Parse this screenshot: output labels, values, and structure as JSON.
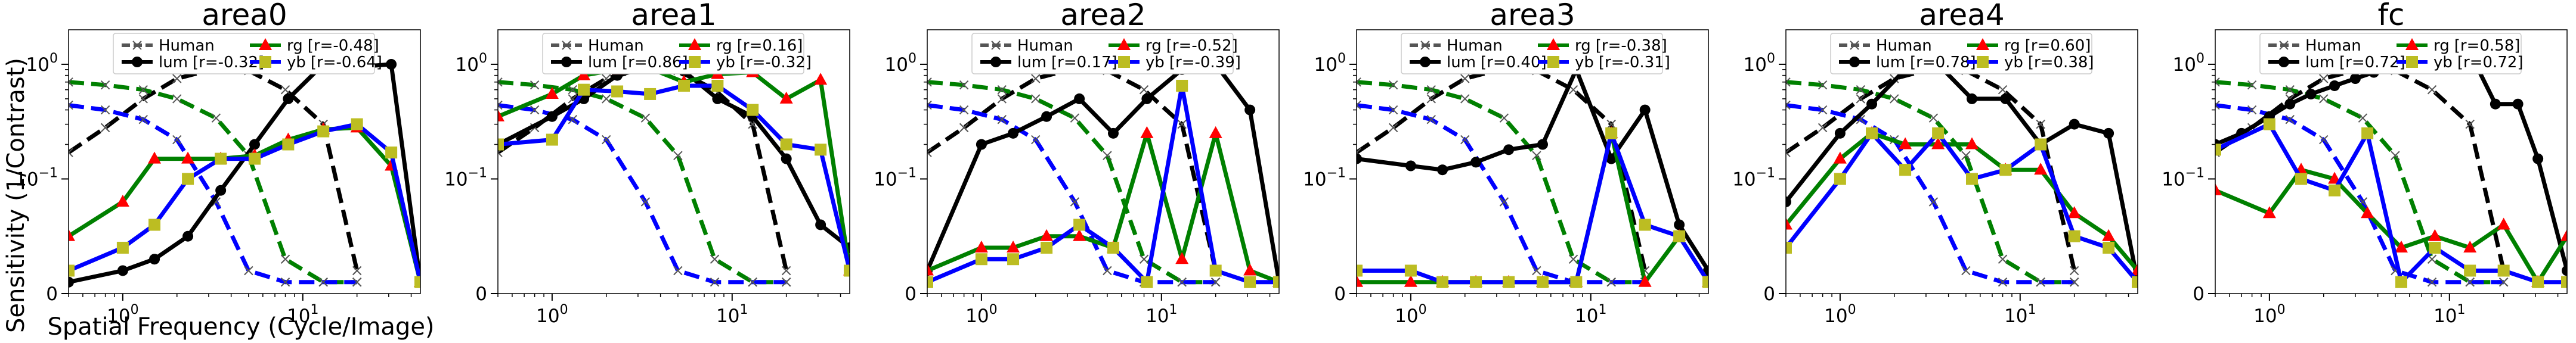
{
  "figure": {
    "ylabel": "Sensitivity (1/Contrast)",
    "xlabel": "Spatial Frequency (Cycle/Image)",
    "colors": {
      "human": "#000000",
      "lum": "#000000",
      "rg": "#008000",
      "yb": "#0000ff",
      "rg_marker": "#ff0000",
      "yb_marker": "#bcbd22"
    }
  },
  "chart_data": [
    {
      "type": "line",
      "title": "area0",
      "x_scale": "log",
      "y_scale": "symlog",
      "xlim": [
        0.5,
        45
      ],
      "ylim": [
        0,
        2
      ],
      "legend": {
        "placement": "top-center",
        "entries": [
          {
            "series": "Human",
            "label": "Human",
            "r": ""
          },
          {
            "series": "lum",
            "label": "lum",
            "r": "[r=-0.32]"
          },
          {
            "series": "rg",
            "label": "rg",
            "r": "[r=-0.48]"
          },
          {
            "series": "yb",
            "label": "yb",
            "r": "[r=-0.64]"
          }
        ]
      },
      "series": [
        {
          "name": "Human",
          "style": "dashed",
          "x": [
            0.5,
            0.8,
            1.3,
            2,
            3.3,
            5,
            8,
            13,
            20
          ],
          "lum": [
            0.17,
            0.28,
            0.5,
            0.75,
            0.92,
            0.88,
            0.6,
            0.3,
            0.02
          ],
          "rg": [
            0.7,
            0.66,
            0.6,
            0.5,
            0.34,
            0.16,
            0.03,
            0.01,
            0.01
          ],
          "yb": [
            0.44,
            0.4,
            0.33,
            0.22,
            0.08,
            0.02,
            0.01,
            0.01,
            0.01
          ]
        },
        {
          "name": "lum",
          "x": [
            0.5,
            1,
            1.5,
            2.3,
            3.5,
            5.4,
            8.3,
            13,
            20,
            31,
            45
          ],
          "y": [
            0.01,
            0.02,
            0.03,
            0.05,
            0.09,
            0.2,
            0.5,
            1.0,
            0.95,
            1.0,
            0.01
          ]
        },
        {
          "name": "rg",
          "x": [
            0.5,
            1,
            1.5,
            2.3,
            3.5,
            5.4,
            8.3,
            13,
            20,
            31,
            45
          ],
          "y": [
            0.05,
            0.08,
            0.15,
            0.15,
            0.15,
            0.16,
            0.22,
            0.27,
            0.28,
            0.13,
            0.01
          ]
        },
        {
          "name": "yb",
          "x": [
            0.5,
            1,
            1.5,
            2.3,
            3.5,
            5.4,
            8.3,
            13,
            20,
            31,
            45
          ],
          "y": [
            0.02,
            0.04,
            0.06,
            0.1,
            0.15,
            0.15,
            0.2,
            0.26,
            0.3,
            0.17,
            0.01
          ]
        }
      ]
    },
    {
      "type": "line",
      "title": "area1",
      "x_scale": "log",
      "y_scale": "symlog",
      "xlim": [
        0.5,
        45
      ],
      "ylim": [
        0,
        2
      ],
      "legend": {
        "placement": "top-center",
        "entries": [
          {
            "series": "Human",
            "label": "Human",
            "r": ""
          },
          {
            "series": "lum",
            "label": "lum",
            "r": "[r=0.86]"
          },
          {
            "series": "rg",
            "label": "rg",
            "r": "[r=0.16]"
          },
          {
            "series": "yb",
            "label": "yb",
            "r": "[r=-0.32]"
          }
        ]
      },
      "series": [
        {
          "name": "Human",
          "style": "dashed",
          "x": [
            0.5,
            0.8,
            1.3,
            2,
            3.3,
            5,
            8,
            13,
            20
          ],
          "lum": [
            0.17,
            0.28,
            0.5,
            0.75,
            0.92,
            0.88,
            0.6,
            0.3,
            0.02
          ],
          "rg": [
            0.7,
            0.66,
            0.6,
            0.5,
            0.34,
            0.16,
            0.03,
            0.01,
            0.01
          ],
          "yb": [
            0.44,
            0.4,
            0.33,
            0.22,
            0.08,
            0.02,
            0.01,
            0.01,
            0.01
          ]
        },
        {
          "name": "lum",
          "x": [
            0.5,
            1,
            1.5,
            2.3,
            3.5,
            5.4,
            8.3,
            13,
            20,
            31,
            45
          ],
          "y": [
            0.2,
            0.35,
            0.5,
            0.8,
            0.95,
            0.87,
            0.5,
            0.35,
            0.15,
            0.06,
            0.04
          ]
        },
        {
          "name": "rg",
          "x": [
            0.5,
            1,
            1.5,
            2.3,
            3.5,
            5.4,
            8.3,
            13,
            20,
            31,
            45
          ],
          "y": [
            0.35,
            0.55,
            0.8,
            0.9,
            0.92,
            0.7,
            0.82,
            0.85,
            0.5,
            0.73,
            0.02
          ]
        },
        {
          "name": "yb",
          "x": [
            0.5,
            1,
            1.5,
            2.3,
            3.5,
            5.4,
            8.3,
            13,
            20,
            31,
            45
          ],
          "y": [
            0.2,
            0.22,
            0.6,
            0.58,
            0.55,
            0.65,
            0.65,
            0.4,
            0.2,
            0.18,
            0.02
          ]
        }
      ]
    },
    {
      "type": "line",
      "title": "area2",
      "x_scale": "log",
      "y_scale": "symlog",
      "xlim": [
        0.5,
        45
      ],
      "ylim": [
        0,
        2
      ],
      "legend": {
        "placement": "top-center",
        "entries": [
          {
            "series": "Human",
            "label": "Human",
            "r": ""
          },
          {
            "series": "lum",
            "label": "lum",
            "r": "[r=0.17]"
          },
          {
            "series": "rg",
            "label": "rg",
            "r": "[r=-0.52]"
          },
          {
            "series": "yb",
            "label": "yb",
            "r": "[r=-0.39]"
          }
        ]
      },
      "series": [
        {
          "name": "Human",
          "style": "dashed",
          "x": [
            0.5,
            0.8,
            1.3,
            2,
            3.3,
            5,
            8,
            13,
            20
          ],
          "lum": [
            0.17,
            0.28,
            0.5,
            0.75,
            0.92,
            0.88,
            0.6,
            0.3,
            0.02
          ],
          "rg": [
            0.7,
            0.66,
            0.6,
            0.5,
            0.34,
            0.16,
            0.03,
            0.01,
            0.01
          ],
          "yb": [
            0.44,
            0.4,
            0.33,
            0.22,
            0.08,
            0.02,
            0.01,
            0.01,
            0.01
          ]
        },
        {
          "name": "lum",
          "x": [
            0.5,
            1,
            1.5,
            2.3,
            3.5,
            5.4,
            8.3,
            13,
            20,
            31,
            45
          ],
          "y": [
            0.02,
            0.2,
            0.25,
            0.35,
            0.5,
            0.25,
            0.5,
            0.9,
            1.0,
            0.4,
            0.01
          ]
        },
        {
          "name": "rg",
          "x": [
            0.5,
            1,
            1.5,
            2.3,
            3.5,
            5.4,
            8.3,
            13,
            20,
            31,
            45
          ],
          "y": [
            0.02,
            0.04,
            0.04,
            0.05,
            0.05,
            0.04,
            0.25,
            0.03,
            0.25,
            0.02,
            0.01
          ]
        },
        {
          "name": "yb",
          "x": [
            0.5,
            1,
            1.5,
            2.3,
            3.5,
            5.4,
            8.3,
            13,
            20,
            31,
            45
          ],
          "y": [
            0.01,
            0.03,
            0.03,
            0.04,
            0.06,
            0.04,
            0.01,
            0.65,
            0.02,
            0.01,
            0.01
          ]
        }
      ]
    },
    {
      "type": "line",
      "title": "area3",
      "x_scale": "log",
      "y_scale": "symlog",
      "xlim": [
        0.5,
        45
      ],
      "ylim": [
        0,
        2
      ],
      "legend": {
        "placement": "top-center",
        "entries": [
          {
            "series": "Human",
            "label": "Human",
            "r": ""
          },
          {
            "series": "lum",
            "label": "lum",
            "r": "[r=0.40]"
          },
          {
            "series": "rg",
            "label": "rg",
            "r": "[r=-0.38]"
          },
          {
            "series": "yb",
            "label": "yb",
            "r": "[r=-0.31]"
          }
        ]
      },
      "series": [
        {
          "name": "Human",
          "style": "dashed",
          "x": [
            0.5,
            0.8,
            1.3,
            2,
            3.3,
            5,
            8,
            13,
            20
          ],
          "lum": [
            0.17,
            0.28,
            0.5,
            0.75,
            0.92,
            0.88,
            0.6,
            0.3,
            0.02
          ],
          "rg": [
            0.7,
            0.66,
            0.6,
            0.5,
            0.34,
            0.16,
            0.03,
            0.01,
            0.01
          ],
          "yb": [
            0.44,
            0.4,
            0.33,
            0.22,
            0.08,
            0.02,
            0.01,
            0.01,
            0.01
          ]
        },
        {
          "name": "lum",
          "x": [
            0.5,
            1,
            1.5,
            2.3,
            3.5,
            5.4,
            8.3,
            13,
            20,
            31,
            45
          ],
          "y": [
            0.15,
            0.13,
            0.12,
            0.14,
            0.18,
            0.2,
            0.9,
            0.15,
            0.4,
            0.06,
            0.02
          ]
        },
        {
          "name": "rg",
          "x": [
            0.5,
            1,
            1.5,
            2.3,
            3.5,
            5.4,
            8.3,
            13,
            20,
            31,
            45
          ],
          "y": [
            0.01,
            0.01,
            0.01,
            0.01,
            0.01,
            0.01,
            0.01,
            0.25,
            0.01,
            0.05,
            0.01
          ]
        },
        {
          "name": "yb",
          "x": [
            0.5,
            1,
            1.5,
            2.3,
            3.5,
            5.4,
            8.3,
            13,
            20,
            31,
            45
          ],
          "y": [
            0.02,
            0.02,
            0.01,
            0.01,
            0.01,
            0.01,
            0.01,
            0.25,
            0.06,
            0.05,
            0.01
          ]
        }
      ]
    },
    {
      "type": "line",
      "title": "area4",
      "x_scale": "log",
      "y_scale": "symlog",
      "xlim": [
        0.5,
        45
      ],
      "ylim": [
        0,
        2
      ],
      "legend": {
        "placement": "top-center",
        "entries": [
          {
            "series": "Human",
            "label": "Human",
            "r": ""
          },
          {
            "series": "lum",
            "label": "lum",
            "r": "[r=0.78]"
          },
          {
            "series": "rg",
            "label": "rg",
            "r": "[r=0.60]"
          },
          {
            "series": "yb",
            "label": "yb",
            "r": "[r=0.38]"
          }
        ]
      },
      "series": [
        {
          "name": "Human",
          "style": "dashed",
          "x": [
            0.5,
            0.8,
            1.3,
            2,
            3.3,
            5,
            8,
            13,
            20
          ],
          "lum": [
            0.17,
            0.28,
            0.5,
            0.75,
            0.92,
            0.88,
            0.6,
            0.3,
            0.02
          ],
          "rg": [
            0.7,
            0.66,
            0.6,
            0.5,
            0.34,
            0.16,
            0.03,
            0.01,
            0.01
          ],
          "yb": [
            0.44,
            0.4,
            0.33,
            0.22,
            0.08,
            0.02,
            0.01,
            0.01,
            0.01
          ]
        },
        {
          "name": "lum",
          "x": [
            0.5,
            1,
            1.5,
            2.3,
            3.5,
            5.4,
            8.3,
            13,
            20,
            31,
            45
          ],
          "y": [
            0.08,
            0.25,
            0.45,
            0.9,
            1.0,
            0.5,
            0.5,
            0.2,
            0.3,
            0.25,
            0.01
          ]
        },
        {
          "name": "rg",
          "x": [
            0.5,
            1,
            1.5,
            2.3,
            3.5,
            5.4,
            8.3,
            13,
            20,
            31,
            45
          ],
          "y": [
            0.06,
            0.15,
            0.25,
            0.2,
            0.2,
            0.2,
            0.12,
            0.12,
            0.07,
            0.05,
            0.02
          ]
        },
        {
          "name": "yb",
          "x": [
            0.5,
            1,
            1.5,
            2.3,
            3.5,
            5.4,
            8.3,
            13,
            20,
            31,
            45
          ],
          "y": [
            0.04,
            0.1,
            0.25,
            0.12,
            0.25,
            0.1,
            0.12,
            0.2,
            0.05,
            0.04,
            0.01
          ]
        }
      ]
    },
    {
      "type": "line",
      "title": "fc",
      "x_scale": "log",
      "y_scale": "symlog",
      "xlim": [
        0.5,
        45
      ],
      "ylim": [
        0,
        2
      ],
      "legend": {
        "placement": "top-center",
        "entries": [
          {
            "series": "Human",
            "label": "Human",
            "r": ""
          },
          {
            "series": "lum",
            "label": "lum",
            "r": "[r=0.72]"
          },
          {
            "series": "rg",
            "label": "rg",
            "r": "[r=0.58]"
          },
          {
            "series": "yb",
            "label": "yb",
            "r": "[r=0.72]"
          }
        ]
      },
      "series": [
        {
          "name": "Human",
          "style": "dashed",
          "x": [
            0.5,
            0.8,
            1.3,
            2,
            3.3,
            5,
            8,
            13,
            20
          ],
          "lum": [
            0.17,
            0.28,
            0.5,
            0.75,
            0.92,
            0.88,
            0.6,
            0.3,
            0.02
          ],
          "rg": [
            0.7,
            0.66,
            0.6,
            0.5,
            0.34,
            0.16,
            0.03,
            0.01,
            0.01
          ],
          "yb": [
            0.44,
            0.4,
            0.33,
            0.22,
            0.08,
            0.02,
            0.01,
            0.01,
            0.01
          ]
        },
        {
          "name": "lum",
          "x": [
            0.5,
            0.7,
            1,
            1.3,
            1.7,
            2.3,
            3,
            3.8,
            5,
            6.5,
            8.3,
            11,
            14,
            18,
            24,
            31,
            45
          ],
          "y": [
            0.2,
            0.25,
            0.35,
            0.45,
            0.55,
            0.65,
            0.75,
            0.85,
            0.95,
            1.0,
            1.0,
            1.0,
            1.0,
            0.45,
            0.45,
            0.15,
            0.02
          ]
        },
        {
          "name": "rg",
          "x": [
            0.5,
            1,
            1.5,
            2.3,
            3.5,
            5.4,
            8.3,
            13,
            20,
            31,
            45
          ],
          "y": [
            0.09,
            0.07,
            0.12,
            0.1,
            0.07,
            0.04,
            0.05,
            0.04,
            0.06,
            0.01,
            0.05
          ]
        },
        {
          "name": "yb",
          "x": [
            0.5,
            1,
            1.5,
            2.3,
            3.5,
            5.4,
            8.3,
            13,
            20,
            31,
            45
          ],
          "y": [
            0.18,
            0.3,
            0.1,
            0.09,
            0.25,
            0.01,
            0.04,
            0.02,
            0.02,
            0.01,
            0.01
          ]
        }
      ]
    }
  ]
}
